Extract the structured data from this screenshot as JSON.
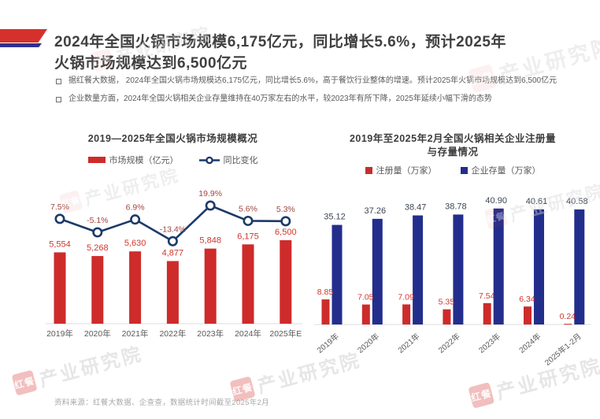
{
  "page": {
    "title_line1": "2024年全国火锅市场规模6,175亿元，同比增长5.6%，预计2025年",
    "title_line2": "火锅市场规模达到6,500亿元",
    "bullets": [
      "据红餐大数据， 2024年全国火锅市场规模达6,175亿元，同比增长5.6%，高于餐饮行业整体的增速。预计2025年火锅市场规模达到6,500亿元",
      "企业数量方面，2024年全国火锅相关企业存量维持在40万家左右的水平，较2023年有所下降，2025年延续小幅下滑的态势"
    ],
    "source_note": "资料来源：红餐大数据、企查查，数据统计时间截至2025年2月",
    "watermark": {
      "logo": "红餐",
      "text": "产业研究院"
    }
  },
  "colors": {
    "red_bar": "#ce2b2b",
    "red_label": "#d2352d",
    "pct_label": "#a2453e",
    "navy_line": "#1b3a69",
    "blue_bar": "#232e8c",
    "blue_label": "#3d4654",
    "axis_line": "#dcdcdc",
    "axis_text": "#595959"
  },
  "chart_data": [
    {
      "type": "bar+line",
      "title": "2019—2025年全国火锅市场规模概况",
      "categories": [
        "2019年",
        "2020年",
        "2021年",
        "2022年",
        "2023年",
        "2024年",
        "2025年E"
      ],
      "series": [
        {
          "name": "市场规模（亿元）",
          "type": "bar",
          "values": [
            5554,
            5268,
            5630,
            4877,
            5848,
            6175,
            6500
          ],
          "labels": [
            "5,554",
            "5,268",
            "5,630",
            "4,877",
            "5,848",
            "6,175",
            "6,500"
          ],
          "color": "#ce2b2b"
        },
        {
          "name": "同比变化",
          "type": "line",
          "values": [
            7.5,
            -5.1,
            6.9,
            -13.4,
            19.9,
            5.6,
            5.3
          ],
          "labels": [
            "7.5%",
            "-5.1%",
            "6.9%",
            "-13.4%",
            "19.9%",
            "5.6%",
            "5.3%"
          ],
          "color": "#1b3a69"
        }
      ],
      "bar_ylim": [
        0,
        6500
      ],
      "line_range_hint": [
        -13.4,
        19.9
      ],
      "legend_position": "top",
      "grid": false
    },
    {
      "type": "bar",
      "title_line1": "2019年至2025年2月全国火锅相关企业注册量",
      "title_line2": "与存量情况",
      "categories": [
        "2019年",
        "2020年",
        "2021年",
        "2022年",
        "2023年",
        "2024年",
        "2025年1-2月"
      ],
      "series": [
        {
          "name": "注册量（万家）",
          "values": [
            8.85,
            7.05,
            7.09,
            5.35,
            7.54,
            6.34,
            0.24
          ],
          "labels": [
            "8.85",
            "7.05",
            "7.09",
            "5.35",
            "7.54",
            "6.34",
            "0.24"
          ],
          "color": "#ce2b2b"
        },
        {
          "name": "企业存量（万家）",
          "values": [
            35.12,
            37.26,
            38.47,
            38.78,
            40.9,
            40.61,
            40.58
          ],
          "labels": [
            "35.12",
            "37.26",
            "38.47",
            "38.78",
            "40.90",
            "40.61",
            "40.58"
          ],
          "color": "#232e8c"
        }
      ],
      "ylim": [
        0,
        45
      ],
      "legend_position": "top",
      "grid": false
    }
  ]
}
